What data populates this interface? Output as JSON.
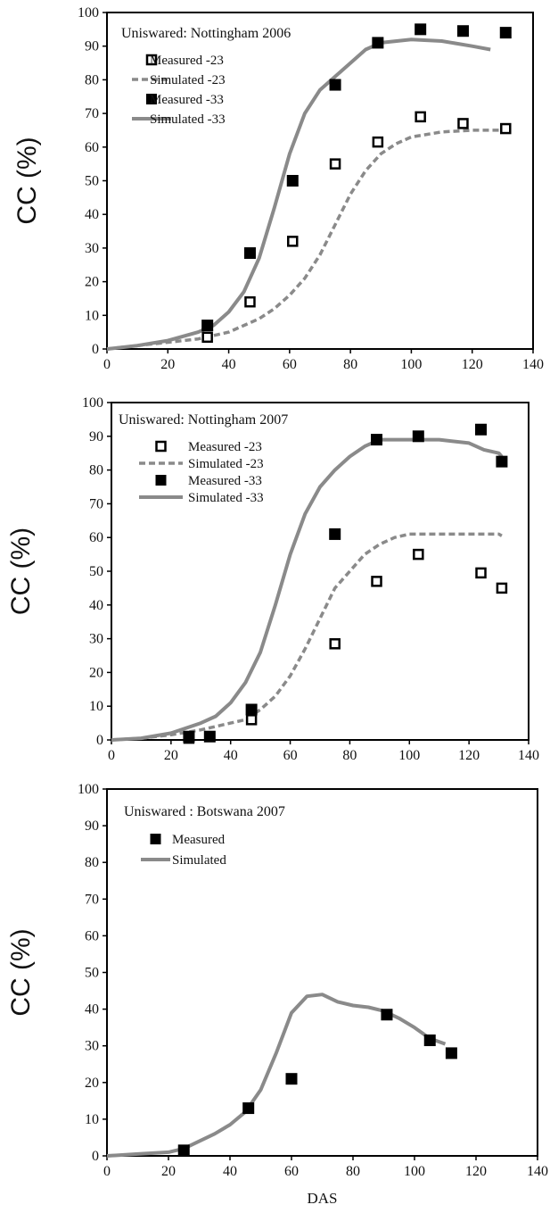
{
  "chart_data": [
    {
      "type": "scatter",
      "title": "Uniswared:   Nottingham 2006",
      "ylabel": "CC (%)",
      "xlabel": "",
      "xlim": [
        0,
        140
      ],
      "ylim": [
        0,
        100
      ],
      "xticks": [
        0,
        20,
        40,
        60,
        80,
        100,
        120,
        140
      ],
      "yticks": [
        0,
        10,
        20,
        30,
        40,
        50,
        60,
        70,
        80,
        90,
        100
      ],
      "grid": false,
      "legend": "top-left",
      "series": [
        {
          "name": "Measured -23",
          "kind": "points",
          "marker": "open-square",
          "x": [
            33,
            47,
            61,
            75,
            89,
            103,
            117,
            131
          ],
          "y": [
            3.5,
            14,
            32,
            55,
            61.5,
            69,
            67,
            65.5
          ]
        },
        {
          "name": "Simulated -23",
          "kind": "line",
          "style": "dashed",
          "x": [
            0,
            10,
            20,
            30,
            35,
            40,
            45,
            50,
            55,
            60,
            65,
            70,
            75,
            80,
            85,
            90,
            95,
            100,
            110,
            120,
            130,
            132
          ],
          "y": [
            0,
            1,
            2,
            3,
            4,
            5,
            7,
            9,
            12,
            16,
            21,
            28,
            37,
            46,
            53,
            58,
            61,
            63,
            64.5,
            65,
            65,
            64.5
          ]
        },
        {
          "name": "Measured -33",
          "kind": "points",
          "marker": "filled-square",
          "x": [
            33,
            47,
            61,
            75,
            89,
            103,
            117,
            131
          ],
          "y": [
            7,
            28.5,
            50,
            78.5,
            91,
            95,
            94.5,
            94
          ]
        },
        {
          "name": "Simulated -33",
          "kind": "line",
          "style": "solid",
          "x": [
            0,
            10,
            20,
            30,
            35,
            40,
            45,
            50,
            55,
            60,
            65,
            70,
            75,
            80,
            85,
            90,
            100,
            110,
            120,
            126
          ],
          "y": [
            0,
            1,
            2.5,
            5,
            7,
            11,
            17,
            27,
            42,
            58,
            70,
            77,
            81,
            85,
            89,
            91,
            92,
            91.5,
            90,
            89
          ]
        }
      ]
    },
    {
      "type": "scatter",
      "title": "Uniswared:   Nottingham 2007",
      "ylabel": "CC (%)",
      "xlabel": "",
      "xlim": [
        0,
        140
      ],
      "ylim": [
        0,
        100
      ],
      "xticks": [
        0,
        20,
        40,
        60,
        80,
        100,
        120,
        140
      ],
      "yticks": [
        0,
        10,
        20,
        30,
        40,
        50,
        60,
        70,
        80,
        90,
        100
      ],
      "grid": false,
      "legend": "top-left",
      "series": [
        {
          "name": "Measured -23",
          "kind": "points",
          "marker": "open-square",
          "x": [
            26,
            33,
            47,
            75,
            89,
            103,
            124,
            131
          ],
          "y": [
            0.5,
            1,
            6,
            28.5,
            47,
            55,
            49.5,
            45
          ]
        },
        {
          "name": "Simulated -23",
          "kind": "line",
          "style": "dashed",
          "x": [
            0,
            10,
            20,
            30,
            40,
            45,
            50,
            55,
            60,
            65,
            70,
            75,
            80,
            85,
            90,
            95,
            100,
            110,
            120,
            130,
            131
          ],
          "y": [
            0,
            0.5,
            1.5,
            3,
            5,
            6,
            9,
            13,
            19,
            27,
            36,
            45,
            50,
            55,
            58,
            60,
            61,
            61,
            61,
            61,
            60.5
          ]
        },
        {
          "name": "Measured -33",
          "kind": "points",
          "marker": "filled-square",
          "x": [
            26,
            33,
            47,
            75,
            89,
            103,
            124,
            131
          ],
          "y": [
            1,
            1,
            9,
            61,
            89,
            90,
            92,
            82.5
          ]
        },
        {
          "name": "Simulated -33",
          "kind": "line",
          "style": "solid",
          "x": [
            0,
            10,
            20,
            30,
            35,
            40,
            45,
            50,
            55,
            60,
            65,
            70,
            75,
            80,
            85,
            90,
            100,
            110,
            120,
            125,
            130,
            131
          ],
          "y": [
            0,
            0.5,
            2,
            5,
            7,
            11,
            17,
            26,
            40,
            55,
            67,
            75,
            80,
            84,
            87,
            89,
            89,
            89,
            88,
            86,
            85,
            84
          ]
        }
      ]
    },
    {
      "type": "scatter",
      "title": "Uniswared : Botswana 2007",
      "ylabel": "CC (%)",
      "xlabel": "DAS",
      "xlim": [
        0,
        140
      ],
      "ylim": [
        0,
        100
      ],
      "xticks": [
        0,
        20,
        40,
        60,
        80,
        100,
        120,
        140
      ],
      "yticks": [
        0,
        10,
        20,
        30,
        40,
        50,
        60,
        70,
        80,
        90,
        100
      ],
      "grid": false,
      "legend": "top-left",
      "series": [
        {
          "name": "Measured",
          "kind": "points",
          "marker": "filled-square",
          "x": [
            25,
            46,
            60,
            91,
            105,
            112
          ],
          "y": [
            1.5,
            13,
            21,
            38.5,
            31.5,
            28
          ]
        },
        {
          "name": "Simulated",
          "kind": "line",
          "style": "solid",
          "x": [
            0,
            10,
            20,
            25,
            30,
            35,
            40,
            45,
            50,
            55,
            60,
            65,
            70,
            75,
            80,
            85,
            90,
            95,
            100,
            105,
            110
          ],
          "y": [
            0,
            0.5,
            1,
            2,
            4,
            6,
            8.5,
            12,
            18,
            28,
            39,
            43.5,
            44,
            42,
            41,
            40.5,
            39.5,
            37.5,
            35,
            32,
            30.5
          ]
        }
      ]
    }
  ]
}
